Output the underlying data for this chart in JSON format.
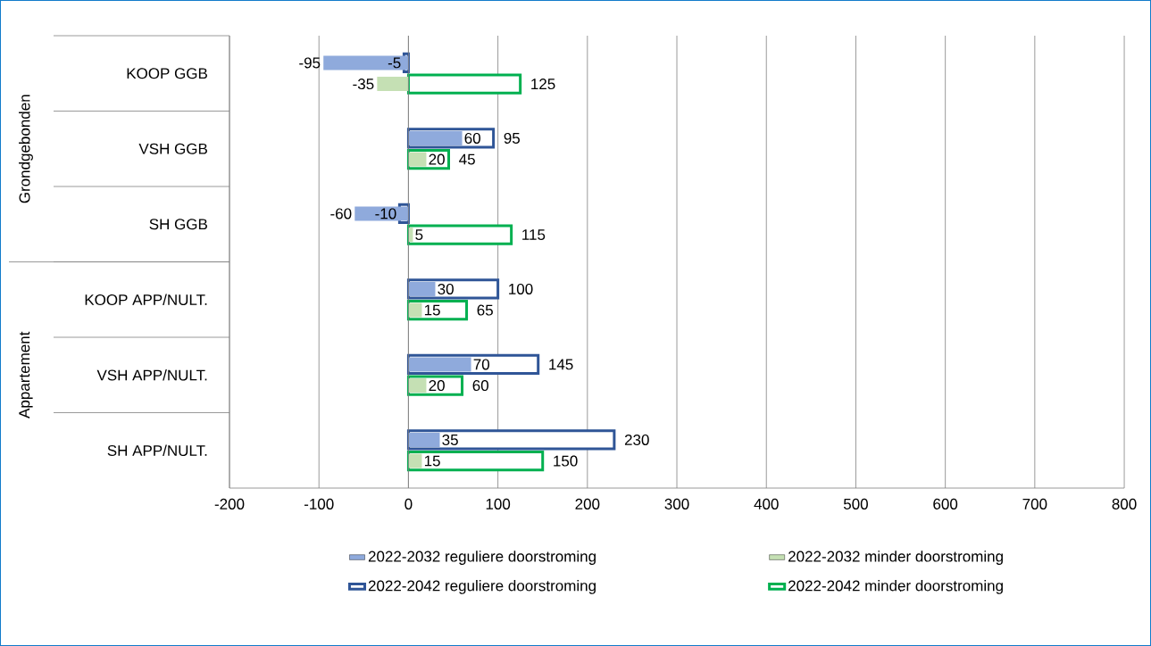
{
  "chart_data": {
    "type": "bar",
    "orientation": "horizontal",
    "categories": [
      "KOOP GGB",
      "VSH GGB",
      "SH GGB",
      "KOOP APP/NULT.",
      "VSH APP/NULT.",
      "SH APP/NULT."
    ],
    "series": [
      {
        "name": "2022-2032 reguliere doorstroming",
        "color": "#8faadc",
        "values": [
          -95,
          60,
          -60,
          30,
          70,
          35
        ]
      },
      {
        "name": "2022-2032 minder doorstroming",
        "color": "#c5e0b4",
        "values": [
          -35,
          20,
          5,
          15,
          20,
          15
        ]
      },
      {
        "name": "2022-2042 reguliere doorstroming",
        "color": "#2f5597",
        "values": [
          -5,
          95,
          -10,
          100,
          145,
          230
        ]
      },
      {
        "name": "2022-2042 minder doorstroming",
        "color": "#00b050",
        "values": [
          125,
          45,
          115,
          65,
          60,
          150
        ]
      }
    ],
    "xlim": [
      -200,
      800
    ],
    "xticks": [
      -200,
      -100,
      0,
      100,
      200,
      300,
      400,
      500,
      600,
      700,
      800
    ],
    "grid": "x",
    "legend": "bottom",
    "data_labels": true,
    "annotations": [
      "Grondgebonden",
      "Appartement"
    ]
  }
}
